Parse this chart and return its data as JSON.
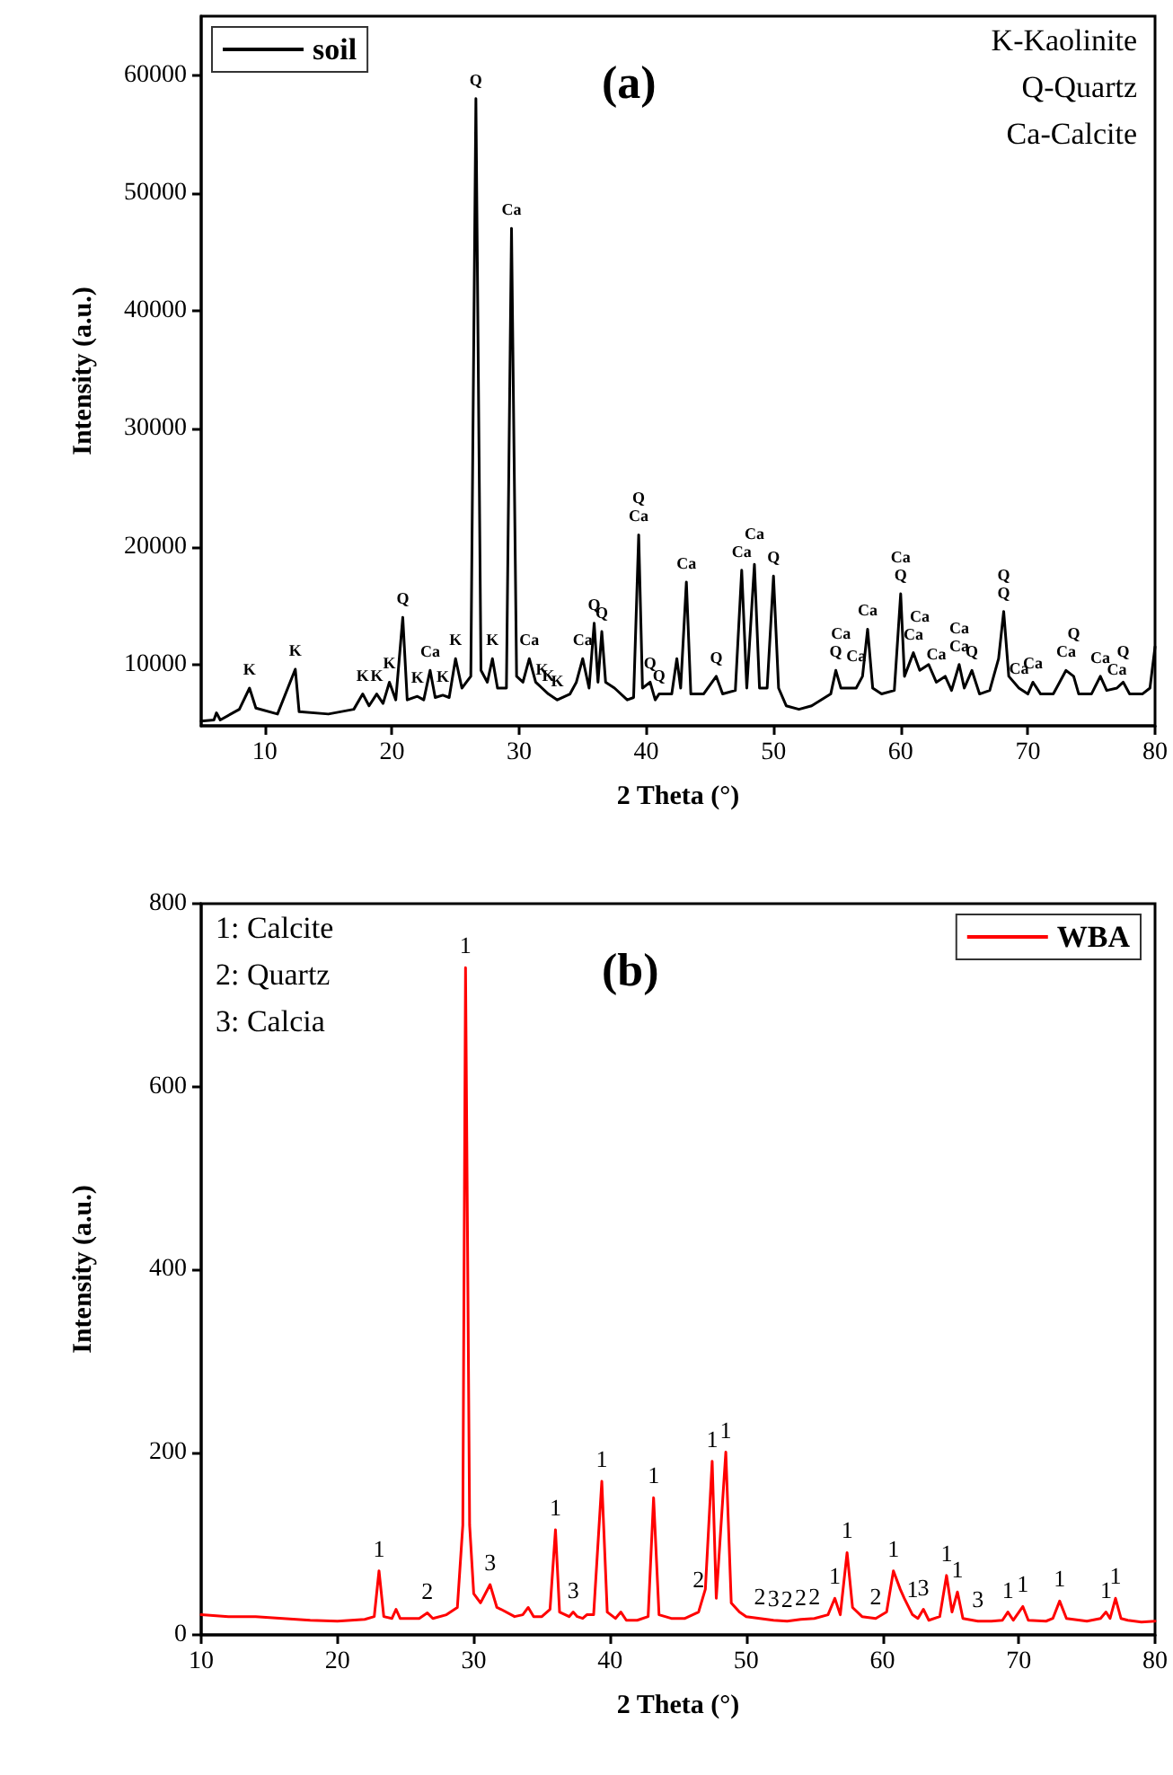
{
  "chart_data": [
    {
      "type": "line",
      "title": "(a)",
      "xlabel": "2 Theta (°)",
      "ylabel": "Intensity (a.u.)",
      "legend": "top left",
      "marker": "none",
      "xlim": [
        5,
        80
      ],
      "xticks": [
        10,
        20,
        30,
        40,
        50,
        60,
        70,
        80
      ],
      "ylim": [
        4800,
        65000
      ],
      "yticks": [
        10000,
        20000,
        30000,
        40000,
        50000,
        60000
      ],
      "series": [
        {
          "name": "soil",
          "color": "#000000",
          "x": [
            5,
            6,
            6.2,
            6.5,
            8,
            8.8,
            9.3,
            11,
            12.4,
            12.7,
            15,
            17,
            17.7,
            18.2,
            18.8,
            19.3,
            19.8,
            20.3,
            20.85,
            21.2,
            22,
            22.5,
            23,
            23.4,
            24,
            24.5,
            25,
            25.5,
            26.2,
            26.6,
            27,
            27.5,
            27.9,
            28.3,
            29,
            29.4,
            29.8,
            30.3,
            30.8,
            31.3,
            31.8,
            32.3,
            33,
            34,
            34.5,
            35,
            35.5,
            35.9,
            36.2,
            36.5,
            36.8,
            37.5,
            38.5,
            39,
            39.4,
            39.7,
            40.3,
            40.7,
            41,
            42,
            42.4,
            42.7,
            43.15,
            43.5,
            44.5,
            45.5,
            46,
            47,
            47.5,
            47.9,
            48.5,
            48.9,
            49.5,
            50,
            50.4,
            51,
            52,
            53,
            54.5,
            54.9,
            55.3,
            56.5,
            57,
            57.4,
            57.8,
            58.5,
            59.5,
            60,
            60.3,
            61,
            61.5,
            62.2,
            62.8,
            63.5,
            64,
            64.6,
            65,
            65.6,
            66.2,
            67,
            67.7,
            68.1,
            68.5,
            69.3,
            70,
            70.4,
            71,
            72,
            73,
            73.6,
            74,
            75,
            75.7,
            76.2,
            77,
            77.5,
            78,
            79,
            79.6,
            80
          ],
          "values": [
            5200,
            5300,
            5900,
            5300,
            6200,
            8000,
            6300,
            5800,
            9600,
            6000,
            5800,
            6200,
            7500,
            6500,
            7500,
            6700,
            8500,
            7000,
            14000,
            7000,
            7300,
            7000,
            9500,
            7200,
            7400,
            7200,
            10500,
            8000,
            9000,
            58000,
            9500,
            8500,
            10500,
            8000,
            8000,
            47000,
            9000,
            8500,
            10500,
            8500,
            8000,
            7500,
            7000,
            7500,
            8500,
            10500,
            8000,
            13500,
            8500,
            12800,
            8500,
            8000,
            7000,
            7200,
            21000,
            8000,
            8500,
            7000,
            7500,
            7500,
            10500,
            8000,
            17000,
            7500,
            7500,
            9000,
            7500,
            7800,
            18000,
            8000,
            18500,
            8000,
            8000,
            17500,
            8000,
            6500,
            6200,
            6500,
            7500,
            9500,
            8000,
            8000,
            9000,
            13000,
            8000,
            7500,
            7800,
            16000,
            9000,
            11000,
            9500,
            10000,
            8500,
            9000,
            7800,
            10000,
            8000,
            9500,
            7500,
            7800,
            10500,
            14500,
            9000,
            8000,
            7500,
            8500,
            7500,
            7500,
            9500,
            9000,
            7500,
            7500,
            9000,
            7800,
            8000,
            8500,
            7500,
            7500,
            8000,
            11500
          ]
        }
      ],
      "annotations": [
        "K-Kaolinite",
        "Q-Quartz",
        "Ca-Calcite",
        {
          "text": "K",
          "x": 8.8,
          "y": 8000
        },
        {
          "text": "K",
          "x": 12.4,
          "y": 9600
        },
        {
          "text": "K",
          "x": 17.7,
          "y": 7500
        },
        {
          "text": "K",
          "x": 18.8,
          "y": 7500
        },
        {
          "text": "K",
          "x": 19.8,
          "y": 8500
        },
        {
          "text": "Q",
          "x": 20.85,
          "y": 14000
        },
        {
          "text": "K",
          "x": 22,
          "y": 7300
        },
        {
          "text": "Ca",
          "x": 23,
          "y": 9500
        },
        {
          "text": "K",
          "x": 24,
          "y": 7400
        },
        {
          "text": "K",
          "x": 25,
          "y": 10500
        },
        {
          "text": "Q",
          "x": 26.6,
          "y": 58000
        },
        {
          "text": "K",
          "x": 27.9,
          "y": 10500
        },
        {
          "text": "Ca",
          "x": 29.4,
          "y": 47000
        },
        {
          "text": "Ca",
          "x": 30.8,
          "y": 10500
        },
        {
          "text": "K",
          "x": 31.8,
          "y": 8000
        },
        {
          "text": "K",
          "x": 32.3,
          "y": 7500
        },
        {
          "text": "K",
          "x": 33,
          "y": 7000
        },
        {
          "text": "Ca",
          "x": 35,
          "y": 10500
        },
        {
          "text": "Q",
          "x": 35.9,
          "y": 13500
        },
        {
          "text": "Q",
          "x": 36.5,
          "y": 12800
        },
        {
          "text": "Ca",
          "x": 39.4,
          "y": 21000
        },
        {
          "text": "Q",
          "x": 39.4,
          "y": 21000
        },
        {
          "text": "Q",
          "x": 40.3,
          "y": 8500
        },
        {
          "text": "Q",
          "x": 41,
          "y": 7500
        },
        {
          "text": "Ca",
          "x": 43.15,
          "y": 17000
        },
        {
          "text": "Q",
          "x": 45.5,
          "y": 9000
        },
        {
          "text": "Ca",
          "x": 47.5,
          "y": 18000
        },
        {
          "text": "Ca",
          "x": 48.5,
          "y": 18500
        },
        {
          "text": "Q",
          "x": 50,
          "y": 17500
        },
        {
          "text": "Q",
          "x": 54.9,
          "y": 9500
        },
        {
          "text": "Ca",
          "x": 55.3,
          "y": 8000
        },
        {
          "text": "Ca",
          "x": 56.5,
          "y": 8000
        },
        {
          "text": "Ca",
          "x": 57.4,
          "y": 13000
        },
        {
          "text": "Q",
          "x": 60,
          "y": 16000
        },
        {
          "text": "Ca",
          "x": 60,
          "y": 16000
        },
        {
          "text": "Ca",
          "x": 61,
          "y": 11000
        },
        {
          "text": "Ca",
          "x": 61.5,
          "y": 9500
        },
        {
          "text": "Ca",
          "x": 62.8,
          "y": 8500
        },
        {
          "text": "Ca",
          "x": 64.6,
          "y": 10000
        },
        {
          "text": "Ca",
          "x": 64.6,
          "y": 10000
        },
        {
          "text": "Q",
          "x": 65.6,
          "y": 9500
        },
        {
          "text": "Q",
          "x": 68.1,
          "y": 14500
        },
        {
          "text": "Q",
          "x": 68.1,
          "y": 14500
        },
        {
          "text": "Ca",
          "x": 69.3,
          "y": 8000
        },
        {
          "text": "Ca",
          "x": 70.4,
          "y": 8500
        },
        {
          "text": "Ca",
          "x": 73,
          "y": 9500
        },
        {
          "text": "Q",
          "x": 73.6,
          "y": 9000
        },
        {
          "text": "Ca",
          "x": 75.7,
          "y": 9000
        },
        {
          "text": "Ca",
          "x": 77,
          "y": 8000
        },
        {
          "text": "Q",
          "x": 77.5,
          "y": 8500
        }
      ]
    },
    {
      "type": "line",
      "title": "(b)",
      "xlabel": "2 Theta (°)",
      "ylabel": "Intensity (a.u.)",
      "legend": "top right",
      "marker": "none",
      "xlim": [
        10,
        80
      ],
      "xticks": [
        10,
        20,
        30,
        40,
        50,
        60,
        70,
        80
      ],
      "ylim": [
        0,
        800
      ],
      "yticks": [
        0,
        200,
        400,
        600,
        800
      ],
      "series": [
        {
          "name": "WBA",
          "color": "#ff0000",
          "x": [
            10,
            12,
            14,
            16,
            18,
            20,
            22,
            22.7,
            23.05,
            23.4,
            24,
            24.3,
            24.6,
            26,
            26.6,
            27,
            28,
            28.8,
            29.2,
            29.4,
            29.7,
            30,
            30.5,
            31.2,
            31.7,
            32,
            33,
            33.6,
            34,
            34.4,
            35,
            35.6,
            36,
            36.3,
            37,
            37.3,
            37.6,
            38,
            38.3,
            38.8,
            39.4,
            39.8,
            40.4,
            40.8,
            41.2,
            42,
            42.8,
            43.2,
            43.6,
            44.5,
            45.5,
            46.5,
            47,
            47.5,
            47.8,
            48.5,
            48.9,
            49.5,
            50,
            51,
            52,
            53,
            54,
            55,
            56,
            56.5,
            56.9,
            57.4,
            57.8,
            58.5,
            59.5,
            60.3,
            60.8,
            61.3,
            61.6,
            62.2,
            62.6,
            63,
            63.4,
            64.2,
            64.7,
            65.1,
            65.5,
            65.9,
            67,
            68,
            68.8,
            69.2,
            69.6,
            70.3,
            70.7,
            72,
            72.5,
            73,
            73.5,
            75,
            76,
            76.4,
            76.7,
            77.1,
            77.5,
            78,
            79,
            80
          ],
          "values": [
            22,
            20,
            20,
            18,
            16,
            15,
            17,
            20,
            70,
            20,
            18,
            28,
            18,
            18,
            24,
            18,
            22,
            30,
            120,
            730,
            120,
            45,
            35,
            55,
            30,
            28,
            20,
            22,
            30,
            20,
            20,
            28,
            115,
            25,
            20,
            25,
            20,
            18,
            22,
            22,
            168,
            25,
            18,
            25,
            16,
            16,
            20,
            150,
            22,
            18,
            18,
            25,
            50,
            190,
            40,
            200,
            35,
            25,
            20,
            18,
            16,
            15,
            17,
            18,
            22,
            40,
            22,
            90,
            30,
            20,
            18,
            25,
            70,
            50,
            40,
            22,
            18,
            28,
            16,
            20,
            65,
            25,
            47,
            18,
            15,
            15,
            16,
            25,
            16,
            31,
            16,
            15,
            18,
            37,
            18,
            15,
            18,
            25,
            18,
            40,
            18,
            16,
            14,
            15
          ]
        }
      ],
      "annotations": [
        "1: Calcite",
        "2: Quartz",
        "3: Calcia",
        {
          "text": "1",
          "x": 23.05,
          "y": 70
        },
        {
          "text": "2",
          "x": 26.6,
          "y": 24
        },
        {
          "text": "1",
          "x": 29.4,
          "y": 730
        },
        {
          "text": "3",
          "x": 31.2,
          "y": 55
        },
        {
          "text": "1",
          "x": 36,
          "y": 115
        },
        {
          "text": "3",
          "x": 37.3,
          "y": 25
        },
        {
          "text": "1",
          "x": 39.4,
          "y": 168
        },
        {
          "text": "1",
          "x": 43.2,
          "y": 150
        },
        {
          "text": "2",
          "x": 46.5,
          "y": 25
        },
        {
          "text": "1",
          "x": 47.5,
          "y": 190
        },
        {
          "text": "1",
          "x": 48.5,
          "y": 200
        },
        {
          "text": "2",
          "x": 51,
          "y": 18
        },
        {
          "text": "3",
          "x": 52,
          "y": 16
        },
        {
          "text": "2",
          "x": 53,
          "y": 15
        },
        {
          "text": "2",
          "x": 54,
          "y": 17
        },
        {
          "text": "2",
          "x": 55,
          "y": 18
        },
        {
          "text": "1",
          "x": 56.5,
          "y": 40
        },
        {
          "text": "1",
          "x": 57.4,
          "y": 90
        },
        {
          "text": "2",
          "x": 59.5,
          "y": 18
        },
        {
          "text": "1",
          "x": 60.8,
          "y": 70
        },
        {
          "text": "1",
          "x": 62.2,
          "y": 22
        },
        {
          "text": "3",
          "x": 63,
          "y": 28
        },
        {
          "text": "1",
          "x": 64.7,
          "y": 65
        },
        {
          "text": "1",
          "x": 65.5,
          "y": 47
        },
        {
          "text": "3",
          "x": 67,
          "y": 15
        },
        {
          "text": "1",
          "x": 69.2,
          "y": 25
        },
        {
          "text": "1",
          "x": 70.3,
          "y": 31
        },
        {
          "text": "1",
          "x": 73,
          "y": 37
        },
        {
          "text": "1",
          "x": 76.4,
          "y": 25
        },
        {
          "text": "1",
          "x": 77.1,
          "y": 40
        }
      ]
    }
  ]
}
